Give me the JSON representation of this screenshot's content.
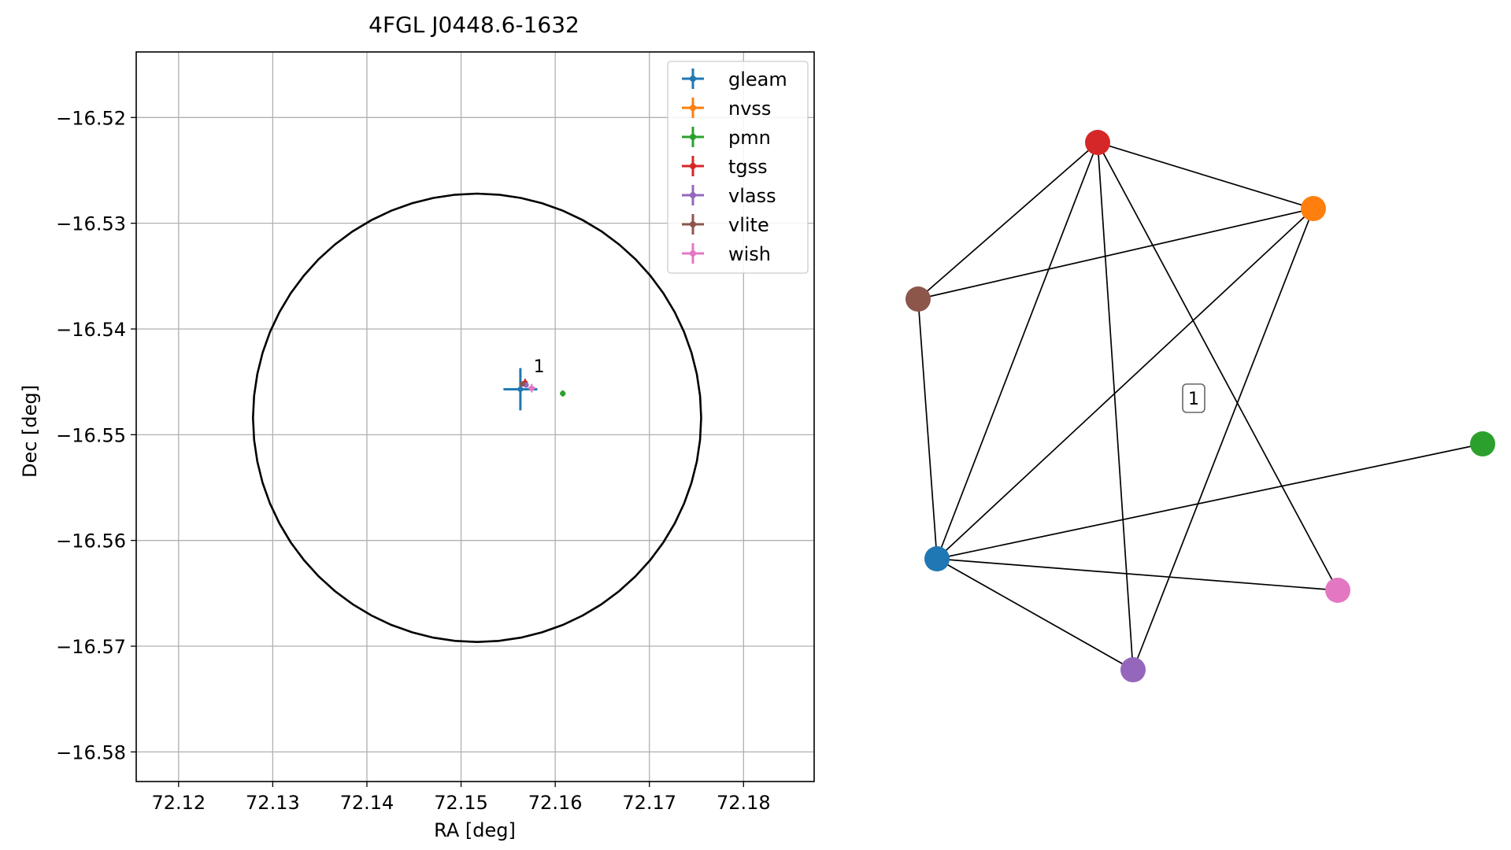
{
  "chart_data": [
    {
      "type": "scatter",
      "title": "4FGL J0448.6-1632",
      "xlabel": "RA [deg]",
      "ylabel": "Dec [deg]",
      "xlim": [
        72.1155,
        72.1875
      ],
      "ylim": [
        -16.5828,
        -16.5138
      ],
      "xticks": [
        72.12,
        72.13,
        72.14,
        72.15,
        72.16,
        72.17,
        72.18
      ],
      "xtick_labels": [
        "72.12",
        "72.13",
        "72.14",
        "72.15",
        "72.16",
        "72.17",
        "72.18"
      ],
      "yticks": [
        -16.52,
        -16.53,
        -16.54,
        -16.55,
        -16.56,
        -16.57,
        -16.58
      ],
      "ytick_labels": [
        "−16.52",
        "−16.53",
        "−16.54",
        "−16.55",
        "−16.56",
        "−16.57",
        "−16.58"
      ],
      "grid": true,
      "legend_position": "top-right",
      "circle": {
        "center": [
          72.1517,
          -16.5484
        ],
        "radius_ra": 0.0238,
        "radius_dec": 0.0212,
        "color": "#000000"
      },
      "series": [
        {
          "name": "gleam",
          "color": "#1f77b4",
          "x": 72.1563,
          "y": -16.5457,
          "xerr": 0.0018,
          "yerr": 0.002
        },
        {
          "name": "nvss",
          "color": "#ff7f0e",
          "x": 72.1568,
          "y": -16.5452,
          "xerr": 0.0002,
          "yerr": 0.0003
        },
        {
          "name": "pmn",
          "color": "#2ca02c",
          "x": 72.1608,
          "y": -16.5461,
          "xerr": 0.0003,
          "yerr": 0.0003
        },
        {
          "name": "tgss",
          "color": "#d62728",
          "x": 72.1568,
          "y": -16.5451,
          "xerr": 0.0003,
          "yerr": 0.0004
        },
        {
          "name": "vlass",
          "color": "#9467bd",
          "x": 72.1569,
          "y": -16.5453,
          "xerr": 0.0001,
          "yerr": 0.0001
        },
        {
          "name": "vlite",
          "color": "#8c564b",
          "x": 72.1565,
          "y": -16.5452,
          "xerr": 0.0002,
          "yerr": 0.0002
        },
        {
          "name": "wish",
          "color": "#e377c2",
          "x": 72.1575,
          "y": -16.5456,
          "xerr": 0.0004,
          "yerr": 0.0004
        }
      ],
      "annotations": [
        {
          "text": "1",
          "x": 72.1577,
          "y": -16.5441
        }
      ]
    },
    {
      "type": "network",
      "cluster_label": "1",
      "nodes": [
        {
          "name": "tgss",
          "color": "#d62728"
        },
        {
          "name": "nvss",
          "color": "#ff7f0e"
        },
        {
          "name": "vlite",
          "color": "#8c564b"
        },
        {
          "name": "pmn",
          "color": "#2ca02c"
        },
        {
          "name": "gleam",
          "color": "#1f77b4"
        },
        {
          "name": "wish",
          "color": "#e377c2"
        },
        {
          "name": "vlass",
          "color": "#9467bd"
        }
      ],
      "edges": [
        [
          "tgss",
          "nvss"
        ],
        [
          "tgss",
          "vlite"
        ],
        [
          "tgss",
          "gleam"
        ],
        [
          "tgss",
          "vlass"
        ],
        [
          "tgss",
          "wish"
        ],
        [
          "nvss",
          "vlite"
        ],
        [
          "nvss",
          "gleam"
        ],
        [
          "nvss",
          "vlass"
        ],
        [
          "vlite",
          "gleam"
        ],
        [
          "gleam",
          "pmn"
        ],
        [
          "gleam",
          "wish"
        ],
        [
          "gleam",
          "vlass"
        ]
      ]
    }
  ]
}
